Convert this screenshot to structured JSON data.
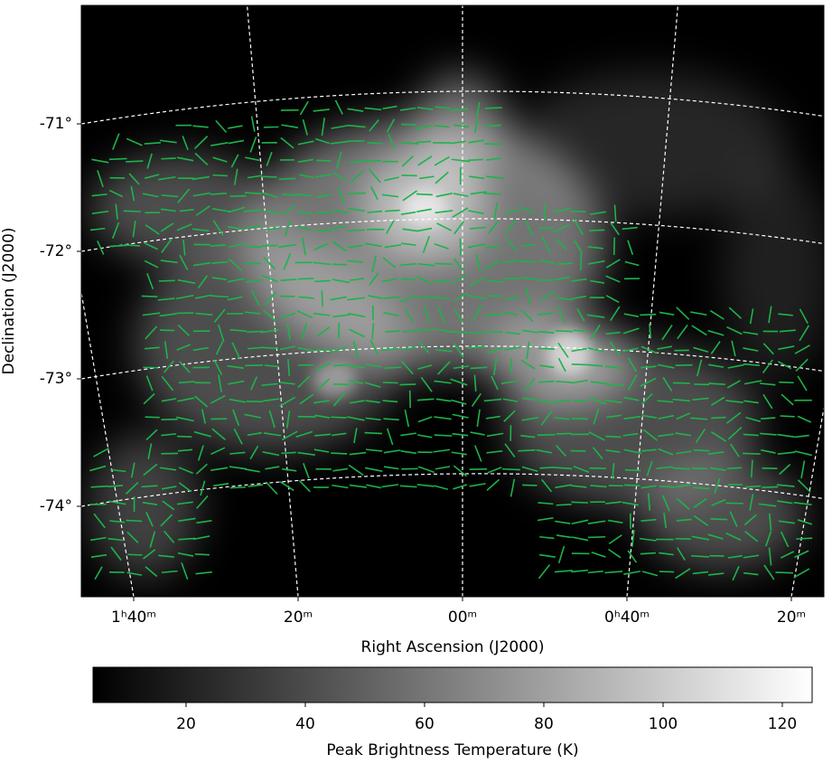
{
  "chart_data": {
    "type": "sky-map",
    "xlabel": "Right Ascension (J2000)",
    "ylabel": "Declination (J2000)",
    "xticks": [
      {
        "value": 100,
        "label": "1ʰ40ᵐ"
      },
      {
        "value": 80,
        "label": "20ᵐ"
      },
      {
        "value": 60,
        "label": "00ᵐ"
      },
      {
        "value": 40,
        "label": "0ʰ40ᵐ"
      },
      {
        "value": 20,
        "label": "20ᵐ"
      }
    ],
    "yticks": [
      {
        "value": -71,
        "label": "-71°"
      },
      {
        "value": -72,
        "label": "-72°"
      },
      {
        "value": -73,
        "label": "-73°"
      },
      {
        "value": -74,
        "label": "-74°"
      }
    ],
    "grid": true,
    "vector_color": "#1db34a",
    "colorbar": {
      "label": "Peak Brightness Temperature (K)",
      "clim": [
        4.4,
        125
      ],
      "ticks": [
        20,
        40,
        60,
        80,
        100,
        120
      ]
    }
  }
}
